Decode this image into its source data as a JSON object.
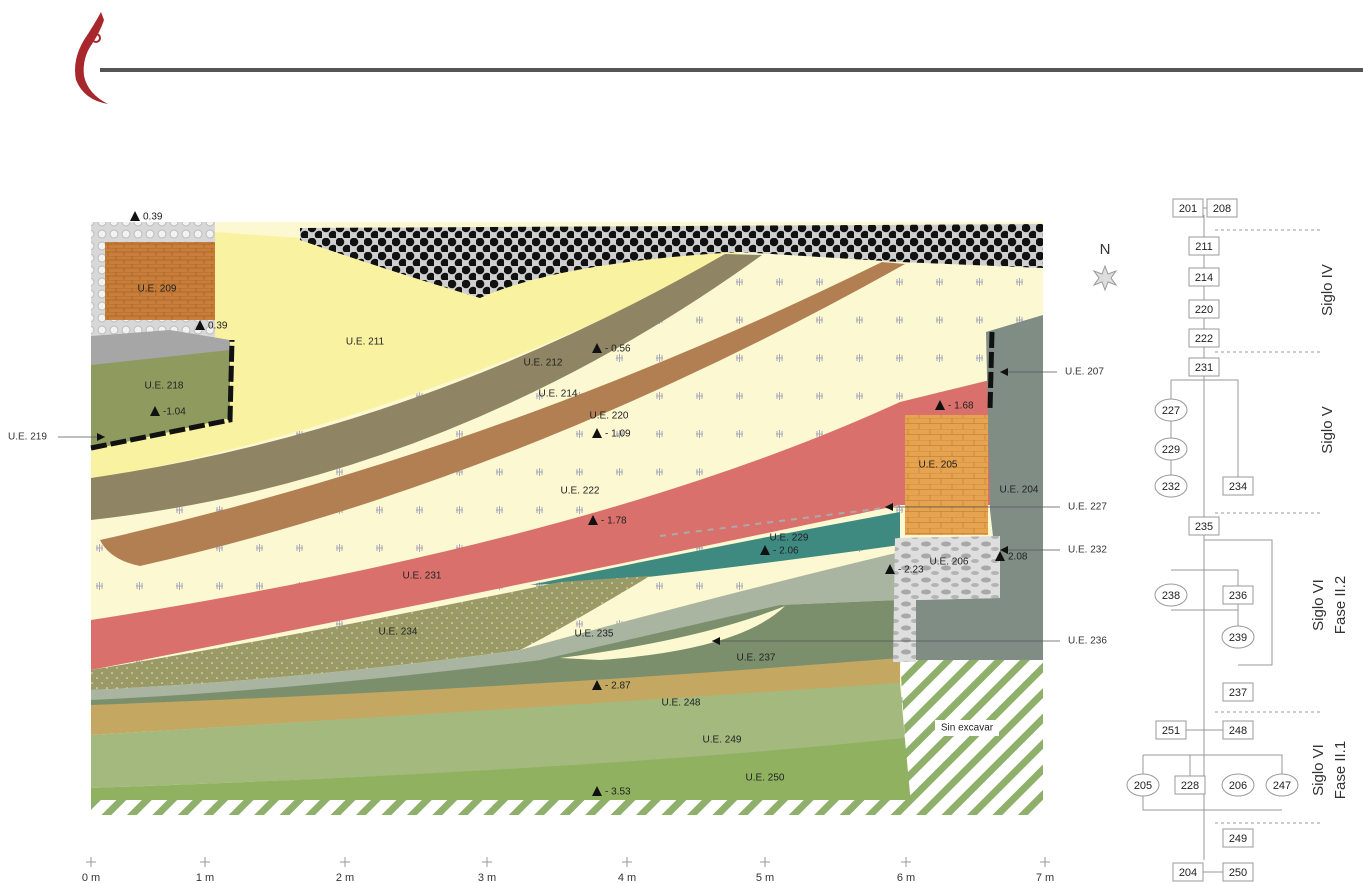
{
  "north": "N",
  "layers": [
    "U.E. 209",
    "U.E. 211",
    "U.E. 212",
    "U.E. 214",
    "U.E. 220",
    "U.E. 218",
    "U.E. 222",
    "U.E. 231",
    "U.E. 229",
    "U.E. 234",
    "U.E. 235",
    "U.E. 237",
    "U.E. 248",
    "U.E. 249",
    "U.E. 250",
    "U.E. 205",
    "U.E. 204",
    "U.E. 206",
    "Sin excavar"
  ],
  "callouts": [
    "U.E. 219",
    "U.E. 207",
    "U.E. 227",
    "U.E. 232",
    "U.E. 236"
  ],
  "elevations": [
    "0.39",
    "0.39",
    "-1.04",
    "- 0.56",
    "- 1.09",
    "- 1.78",
    "- 2.06",
    "- 2.23",
    "2.08",
    "- 1.68",
    "- 2.87",
    "- 3.53"
  ],
  "scale": [
    "0 m",
    "1 m",
    "2 m",
    "3 m",
    "4 m",
    "5 m",
    "6 m",
    "7 m"
  ],
  "matrix": {
    "nodes": [
      "201",
      "208",
      "211",
      "214",
      "220",
      "222",
      "231",
      "227",
      "229",
      "232",
      "234",
      "235",
      "238",
      "236",
      "239",
      "237",
      "251",
      "248",
      "205",
      "228",
      "206",
      "247",
      "249",
      "204",
      "250"
    ],
    "periods": [
      [
        "Siglo IV"
      ],
      [
        "Siglo V"
      ],
      [
        "Siglo VI",
        "Fase II.2"
      ],
      [
        "Siglo VI",
        "Fase II.1"
      ]
    ]
  }
}
